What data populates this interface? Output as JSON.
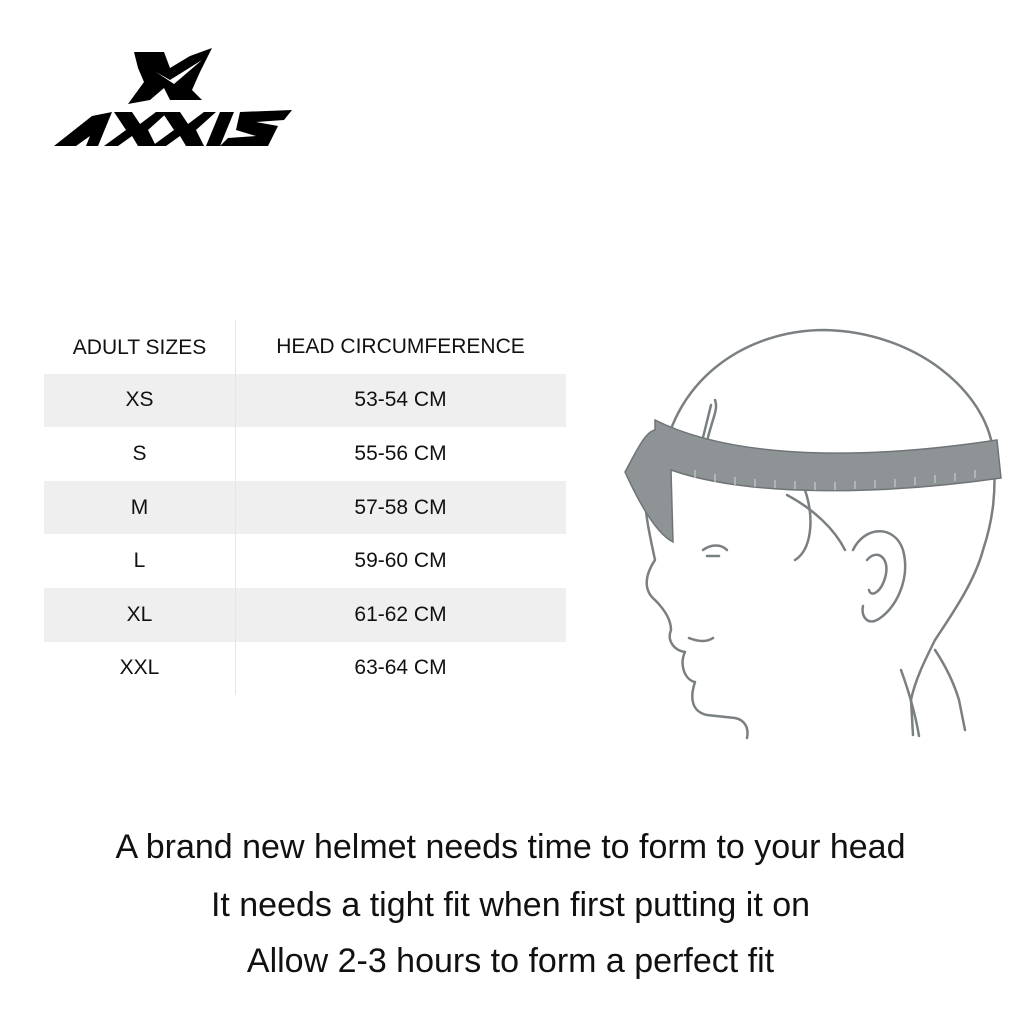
{
  "brand": {
    "logo_text": "AXXIS",
    "logo_color": "#000000"
  },
  "size_table": {
    "headers": [
      "ADULT SIZES",
      "HEAD CIRCUMFERENCE"
    ],
    "rows": [
      {
        "size": "XS",
        "circumference": "53-54 CM"
      },
      {
        "size": "S",
        "circumference": "55-56 CM"
      },
      {
        "size": "M",
        "circumference": "57-58 CM"
      },
      {
        "size": "L",
        "circumference": "59-60 CM"
      },
      {
        "size": "XL",
        "circumference": "61-62 CM"
      },
      {
        "size": "XXL",
        "circumference": "63-64 CM"
      }
    ],
    "stripe_color": "#efefef"
  },
  "illustration": {
    "subject": "head-measuring-tape",
    "tape_color": "#8e9395"
  },
  "notes": [
    "A brand new helmet needs time to form to your head",
    "It needs a tight fit when first putting it on",
    "Allow 2-3 hours to form a perfect fit"
  ]
}
